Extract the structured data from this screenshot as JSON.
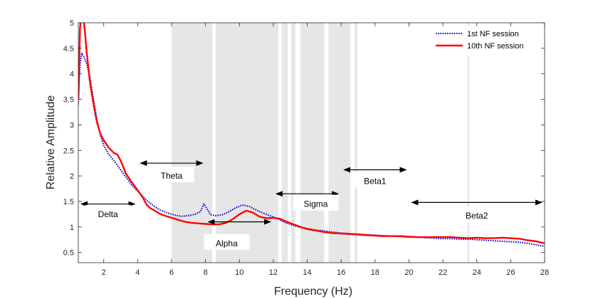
{
  "chart_data": {
    "type": "line",
    "title": "",
    "xlabel": "Frequency (Hz)",
    "ylabel": "Relative Amplitude",
    "xlim": [
      0.5,
      28
    ],
    "ylim": [
      0.3,
      5
    ],
    "xticks": [
      2,
      4,
      6,
      8,
      10,
      12,
      14,
      16,
      18,
      20,
      22,
      24,
      26,
      28
    ],
    "yticks": [
      0.5,
      1,
      1.5,
      2,
      2.5,
      3,
      3.5,
      4,
      4.5,
      5
    ],
    "legend_position": "top-right",
    "grid": false,
    "series": [
      {
        "name": "1st NF session",
        "color": "#0000cc",
        "style": "dotted",
        "points": [
          [
            0.5,
            3.4
          ],
          [
            0.6,
            4.2
          ],
          [
            0.7,
            4.4
          ],
          [
            0.8,
            4.35
          ],
          [
            1.0,
            4.2
          ],
          [
            1.2,
            3.9
          ],
          [
            1.4,
            3.5
          ],
          [
            1.6,
            3.1
          ],
          [
            1.8,
            2.8
          ],
          [
            2.0,
            2.6
          ],
          [
            2.3,
            2.42
          ],
          [
            2.6,
            2.3
          ],
          [
            3.0,
            2.12
          ],
          [
            3.3,
            1.98
          ],
          [
            3.6,
            1.84
          ],
          [
            4.0,
            1.7
          ],
          [
            4.3,
            1.6
          ],
          [
            4.6,
            1.5
          ],
          [
            5.0,
            1.4
          ],
          [
            5.4,
            1.32
          ],
          [
            5.8,
            1.27
          ],
          [
            6.2,
            1.23
          ],
          [
            6.6,
            1.21
          ],
          [
            7.0,
            1.22
          ],
          [
            7.4,
            1.25
          ],
          [
            7.7,
            1.3
          ],
          [
            7.9,
            1.45
          ],
          [
            8.1,
            1.35
          ],
          [
            8.3,
            1.24
          ],
          [
            8.6,
            1.22
          ],
          [
            9.0,
            1.24
          ],
          [
            9.4,
            1.3
          ],
          [
            9.8,
            1.38
          ],
          [
            10.2,
            1.43
          ],
          [
            10.6,
            1.4
          ],
          [
            11.0,
            1.33
          ],
          [
            11.4,
            1.27
          ],
          [
            11.8,
            1.22
          ],
          [
            12.2,
            1.17
          ],
          [
            12.6,
            1.1
          ],
          [
            13.0,
            1.05
          ],
          [
            13.5,
            1.0
          ],
          [
            14.0,
            0.97
          ],
          [
            14.5,
            0.94
          ],
          [
            15.0,
            0.92
          ],
          [
            15.5,
            0.9
          ],
          [
            16.0,
            0.88
          ],
          [
            16.5,
            0.87
          ],
          [
            17.0,
            0.86
          ],
          [
            17.5,
            0.85
          ],
          [
            18.0,
            0.84
          ],
          [
            18.5,
            0.83
          ],
          [
            19.0,
            0.82
          ],
          [
            19.5,
            0.81
          ],
          [
            20.0,
            0.8
          ],
          [
            20.5,
            0.8
          ],
          [
            21.0,
            0.79
          ],
          [
            21.5,
            0.78
          ],
          [
            22.0,
            0.77
          ],
          [
            22.5,
            0.77
          ],
          [
            23.0,
            0.76
          ],
          [
            23.5,
            0.76
          ],
          [
            24.0,
            0.75
          ],
          [
            24.5,
            0.74
          ],
          [
            25.0,
            0.73
          ],
          [
            25.5,
            0.72
          ],
          [
            26.0,
            0.71
          ],
          [
            26.5,
            0.7
          ],
          [
            27.0,
            0.68
          ],
          [
            27.5,
            0.65
          ],
          [
            28.0,
            0.62
          ]
        ]
      },
      {
        "name": "10th NF session",
        "color": "#ff0000",
        "style": "solid",
        "points": [
          [
            0.5,
            3.5
          ],
          [
            0.55,
            4.2
          ],
          [
            0.6,
            4.9
          ],
          [
            0.7,
            5.2
          ],
          [
            0.8,
            5.1
          ],
          [
            0.9,
            4.8
          ],
          [
            1.0,
            4.4
          ],
          [
            1.2,
            3.8
          ],
          [
            1.4,
            3.4
          ],
          [
            1.6,
            3.05
          ],
          [
            1.8,
            2.82
          ],
          [
            2.0,
            2.7
          ],
          [
            2.3,
            2.55
          ],
          [
            2.6,
            2.45
          ],
          [
            2.8,
            2.42
          ],
          [
            3.0,
            2.3
          ],
          [
            3.3,
            2.05
          ],
          [
            3.6,
            1.9
          ],
          [
            4.0,
            1.72
          ],
          [
            4.3,
            1.58
          ],
          [
            4.5,
            1.45
          ],
          [
            4.7,
            1.38
          ],
          [
            5.0,
            1.32
          ],
          [
            5.3,
            1.26
          ],
          [
            5.6,
            1.22
          ],
          [
            6.0,
            1.18
          ],
          [
            6.4,
            1.14
          ],
          [
            6.8,
            1.1
          ],
          [
            7.2,
            1.08
          ],
          [
            7.6,
            1.07
          ],
          [
            8.0,
            1.06
          ],
          [
            8.4,
            1.05
          ],
          [
            8.8,
            1.05
          ],
          [
            9.2,
            1.08
          ],
          [
            9.6,
            1.15
          ],
          [
            10.0,
            1.25
          ],
          [
            10.4,
            1.32
          ],
          [
            10.8,
            1.28
          ],
          [
            11.2,
            1.2
          ],
          [
            11.6,
            1.17
          ],
          [
            12.0,
            1.18
          ],
          [
            12.4,
            1.16
          ],
          [
            12.8,
            1.1
          ],
          [
            13.2,
            1.05
          ],
          [
            13.6,
            1.0
          ],
          [
            14.0,
            0.96
          ],
          [
            14.5,
            0.93
          ],
          [
            15.0,
            0.9
          ],
          [
            15.5,
            0.88
          ],
          [
            16.0,
            0.87
          ],
          [
            16.5,
            0.86
          ],
          [
            17.0,
            0.85
          ],
          [
            17.5,
            0.84
          ],
          [
            18.0,
            0.83
          ],
          [
            18.5,
            0.82
          ],
          [
            19.0,
            0.82
          ],
          [
            19.5,
            0.82
          ],
          [
            20.0,
            0.81
          ],
          [
            20.5,
            0.8
          ],
          [
            21.0,
            0.8
          ],
          [
            21.5,
            0.8
          ],
          [
            22.0,
            0.8
          ],
          [
            22.5,
            0.8
          ],
          [
            23.0,
            0.79
          ],
          [
            23.5,
            0.78
          ],
          [
            24.0,
            0.79
          ],
          [
            24.5,
            0.78
          ],
          [
            25.0,
            0.78
          ],
          [
            25.5,
            0.79
          ],
          [
            26.0,
            0.78
          ],
          [
            26.5,
            0.77
          ],
          [
            27.0,
            0.74
          ],
          [
            27.5,
            0.72
          ],
          [
            28.0,
            0.68
          ]
        ]
      }
    ],
    "shaded_bands": [
      [
        6.0,
        8.4
      ],
      [
        8.6,
        12.3
      ],
      [
        12.5,
        12.85
      ],
      [
        13.05,
        13.3
      ],
      [
        13.6,
        15.0
      ],
      [
        15.25,
        16.55
      ],
      [
        16.8,
        16.95
      ],
      [
        23.45,
        23.55
      ]
    ],
    "annotations": [
      {
        "label": "Delta",
        "arrow_x": [
          0.5,
          4.0
        ],
        "arrow_y": 1.45,
        "label_x": 2.25,
        "label_y": 1.25
      },
      {
        "label": "Theta",
        "arrow_x": [
          4.0,
          8.0
        ],
        "arrow_y": 2.25,
        "label_x": 6.0,
        "label_y": 2.0
      },
      {
        "label": "Alpha",
        "arrow_x": [
          8.0,
          12.0
        ],
        "arrow_y": 1.1,
        "label_x": 9.25,
        "label_y": 0.68
      },
      {
        "label": "Sigma",
        "arrow_x": [
          12.0,
          16.0
        ],
        "arrow_y": 1.65,
        "label_x": 14.5,
        "label_y": 1.45
      },
      {
        "label": "Beta1",
        "arrow_x": [
          16.0,
          20.0
        ],
        "arrow_y": 2.12,
        "label_x": 18.0,
        "label_y": 1.9
      },
      {
        "label": "Beta2",
        "arrow_x": [
          20.0,
          28.0
        ],
        "arrow_y": 1.48,
        "label_x": 24.0,
        "label_y": 1.22
      }
    ]
  }
}
